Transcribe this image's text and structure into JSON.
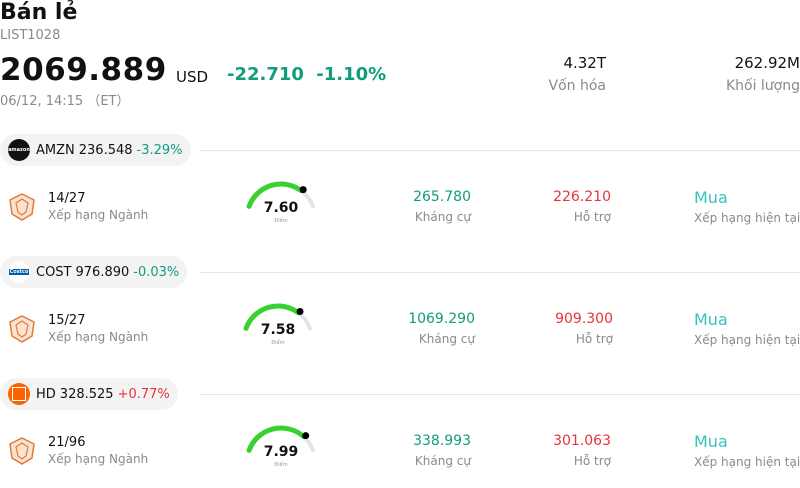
{
  "header": {
    "title": "Bán lẻ",
    "code": "LIST1028",
    "price": "2069.889",
    "currency": "USD",
    "change": "-22.710",
    "change_pct": "-1.10%",
    "time": "06/12, 14:15 （ET）",
    "market_cap": {
      "value": "4.32T",
      "label": "Vốn hóa"
    },
    "volume": {
      "value": "262.92M",
      "label": "Khối lượng"
    }
  },
  "stocks": [
    {
      "symbol": "AMZN",
      "price": "236.548",
      "change": "-3.29%",
      "logo_color": "#111111",
      "logo_icon": "amazon-logo-icon",
      "rank": "14/27",
      "rank_label": "Xếp hạng Ngành",
      "score": "7.60",
      "score_label": "Điểm",
      "score_fraction": 0.76,
      "resistance": "265.780",
      "resistance_label": "Kháng cự",
      "support": "226.210",
      "support_label": "Hỗ trợ",
      "rating": "Mua",
      "rating_label": "Xếp hạng hiện tại"
    },
    {
      "symbol": "COST",
      "price": "976.890",
      "change": "-0.03%",
      "logo_color": "#e31837",
      "logo_icon": "costco-logo-icon",
      "rank": "15/27",
      "rank_label": "Xếp hạng Ngành",
      "score": "7.58",
      "score_label": "Điểm",
      "score_fraction": 0.758,
      "resistance": "1069.290",
      "resistance_label": "Kháng cự",
      "support": "909.300",
      "support_label": "Hỗ trợ",
      "rating": "Mua",
      "rating_label": "Xếp hạng hiện tại"
    },
    {
      "symbol": "HD",
      "price": "328.525",
      "change": "+0.77%",
      "logo_color": "#f96302",
      "logo_icon": "home-depot-logo-icon",
      "rank": "21/96",
      "rank_label": "Xếp hạng Ngành",
      "score": "7.99",
      "score_label": "Điểm",
      "score_fraction": 0.799,
      "resistance": "338.993",
      "resistance_label": "Kháng cự",
      "support": "301.063",
      "support_label": "Hỗ trợ",
      "rating": "Mua",
      "rating_label": "Xếp hạng hiện tại"
    }
  ],
  "colors": {
    "up": "#e8323c",
    "down": "#0f9d7d",
    "gauge": "#39d12f",
    "rating": "#39c1bd"
  }
}
